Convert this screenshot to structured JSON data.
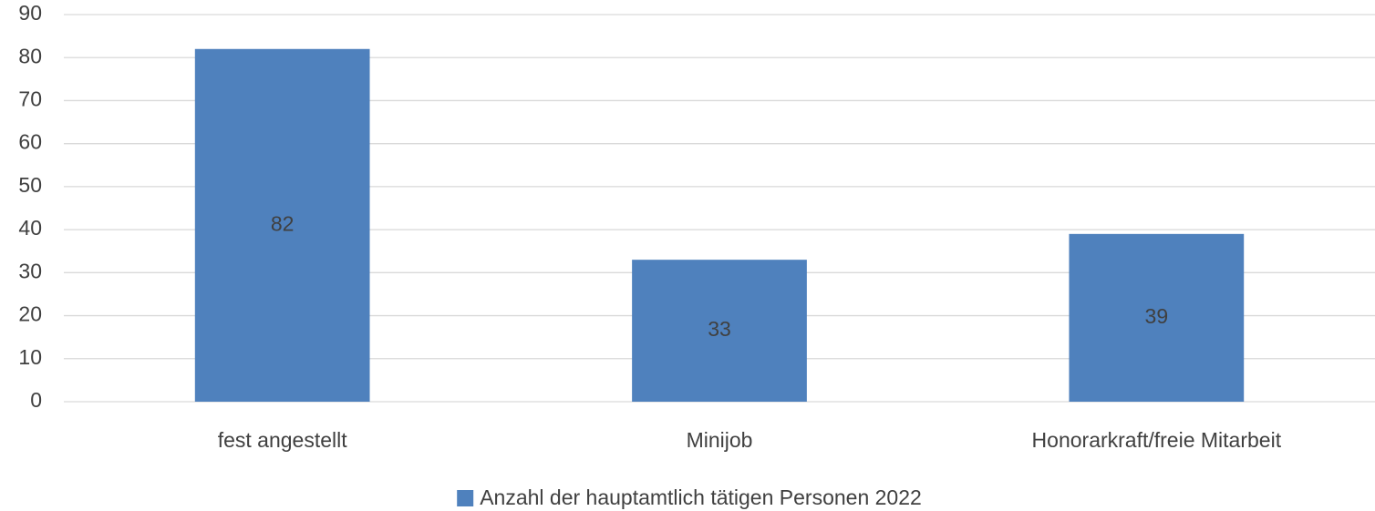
{
  "chart_data": {
    "type": "bar",
    "categories": [
      "fest angestellt",
      "Minijob",
      "Honorarkraft/freie Mitarbeit"
    ],
    "series": [
      {
        "name": "Anzahl der hauptamtlich tätigen Personen 2022",
        "color": "#4f81bd",
        "values": [
          82,
          33,
          39
        ]
      }
    ],
    "ylim": [
      0,
      90
    ],
    "yticks": [
      0,
      10,
      20,
      30,
      40,
      50,
      60,
      70,
      80,
      90
    ],
    "grid": true,
    "legend": "bottom",
    "data_labels": true
  }
}
